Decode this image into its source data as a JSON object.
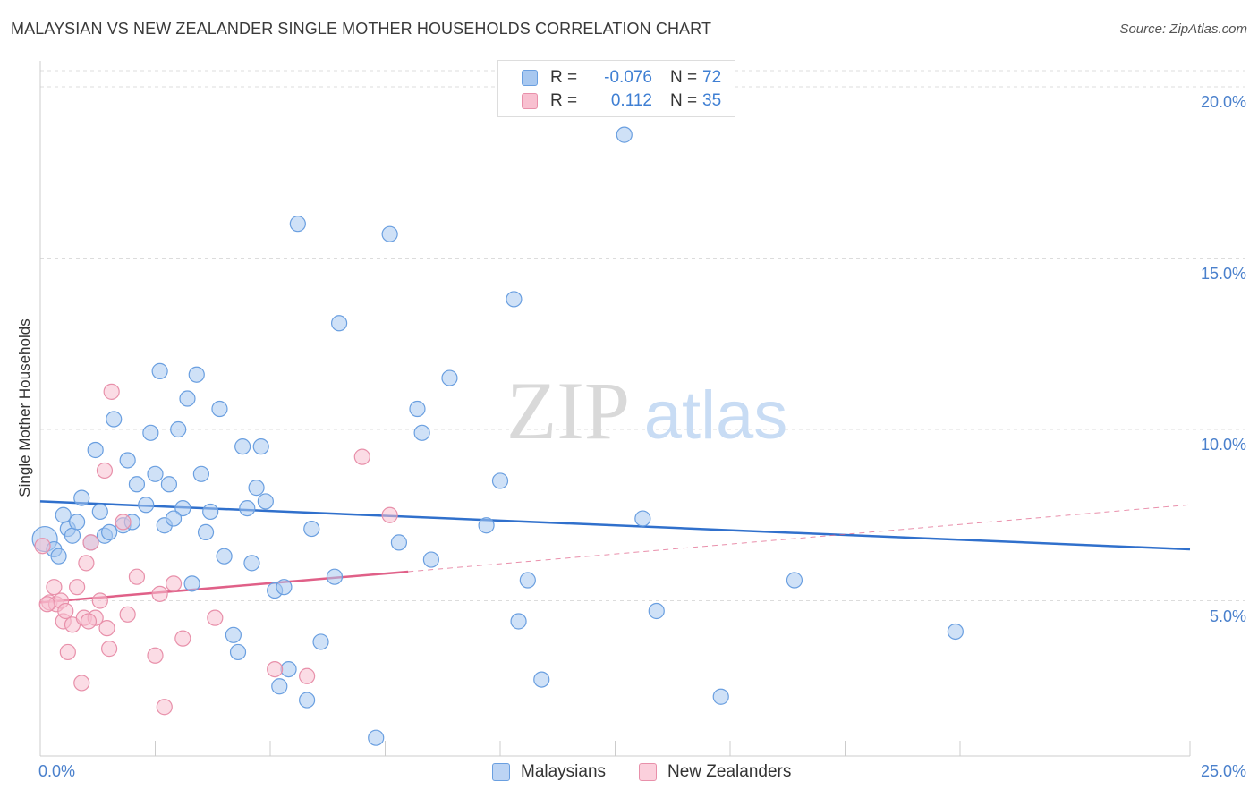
{
  "header": {
    "title": "MALAYSIAN VS NEW ZEALANDER SINGLE MOTHER HOUSEHOLDS CORRELATION CHART",
    "source": "Source: ZipAtlas.com"
  },
  "watermark": {
    "zip": "ZIP",
    "atlas": "atlas"
  },
  "stats_legend": [
    {
      "r_label": "R =",
      "r_value": "-0.076",
      "n_label": "N =",
      "n_value": "72",
      "color": "#a8c8f0",
      "border": "#6a9fe0"
    },
    {
      "r_label": "R =",
      "r_value": "0.112",
      "n_label": "N =",
      "n_value": "35",
      "color": "#f8c0d0",
      "border": "#e890aa"
    }
  ],
  "chart_data": {
    "type": "scatter",
    "title": "MALAYSIAN VS NEW ZEALANDER SINGLE MOTHER HOUSEHOLDS CORRELATION CHART",
    "xlabel": "",
    "ylabel": "Single Mother Households",
    "xlim": [
      0,
      25
    ],
    "ylim": [
      0,
      20
    ],
    "x_tick_labels": [
      "0.0%",
      "25.0%"
    ],
    "y_ticks": [
      5,
      10,
      15,
      20
    ],
    "y_tick_labels": [
      "5.0%",
      "10.0%",
      "15.0%",
      "20.0%"
    ],
    "grid": "horizontal-dashed",
    "legend_position": "bottom-center",
    "series": [
      {
        "name": "Malaysians",
        "color": "#6a9fe0",
        "fill": "#a8c8f0",
        "trend": {
          "x": [
            0,
            25
          ],
          "y": [
            7.9,
            6.5
          ],
          "color": "#3070cc"
        },
        "points": [
          [
            0.1,
            6.8
          ],
          [
            0.3,
            6.5
          ],
          [
            0.4,
            6.3
          ],
          [
            0.6,
            7.1
          ],
          [
            0.7,
            6.9
          ],
          [
            0.8,
            7.3
          ],
          [
            0.9,
            8.0
          ],
          [
            1.1,
            6.7
          ],
          [
            1.2,
            9.4
          ],
          [
            1.4,
            6.9
          ],
          [
            1.5,
            7.0
          ],
          [
            1.6,
            10.3
          ],
          [
            1.8,
            7.2
          ],
          [
            1.9,
            9.1
          ],
          [
            2.0,
            7.3
          ],
          [
            2.1,
            8.4
          ],
          [
            2.3,
            7.8
          ],
          [
            2.4,
            9.9
          ],
          [
            2.5,
            8.7
          ],
          [
            2.6,
            11.7
          ],
          [
            2.7,
            7.2
          ],
          [
            2.8,
            8.4
          ],
          [
            3.0,
            10.0
          ],
          [
            3.1,
            7.7
          ],
          [
            3.2,
            10.9
          ],
          [
            3.4,
            11.6
          ],
          [
            3.5,
            8.7
          ],
          [
            3.6,
            7.0
          ],
          [
            3.7,
            7.6
          ],
          [
            3.9,
            10.6
          ],
          [
            4.0,
            6.3
          ],
          [
            4.2,
            4.0
          ],
          [
            4.4,
            9.5
          ],
          [
            4.5,
            7.7
          ],
          [
            4.7,
            8.3
          ],
          [
            4.8,
            9.5
          ],
          [
            4.9,
            7.9
          ],
          [
            5.1,
            5.3
          ],
          [
            5.2,
            2.5
          ],
          [
            5.3,
            5.4
          ],
          [
            5.4,
            3.0
          ],
          [
            5.6,
            16.0
          ],
          [
            5.8,
            2.1
          ],
          [
            5.9,
            7.1
          ],
          [
            6.1,
            3.8
          ],
          [
            6.4,
            5.7
          ],
          [
            6.5,
            13.1
          ],
          [
            7.3,
            1.0
          ],
          [
            7.6,
            15.7
          ],
          [
            7.8,
            6.7
          ],
          [
            8.2,
            10.6
          ],
          [
            8.3,
            9.9
          ],
          [
            8.5,
            6.2
          ],
          [
            8.9,
            11.5
          ],
          [
            9.7,
            7.2
          ],
          [
            10.0,
            8.5
          ],
          [
            10.3,
            13.8
          ],
          [
            10.4,
            4.4
          ],
          [
            10.6,
            5.6
          ],
          [
            10.9,
            2.7
          ],
          [
            12.7,
            18.6
          ],
          [
            13.1,
            7.4
          ],
          [
            13.4,
            4.7
          ],
          [
            14.8,
            2.2
          ],
          [
            16.4,
            5.6
          ],
          [
            19.9,
            4.1
          ],
          [
            4.3,
            3.5
          ],
          [
            2.9,
            7.4
          ],
          [
            1.3,
            7.6
          ],
          [
            0.5,
            7.5
          ],
          [
            4.6,
            6.1
          ],
          [
            3.3,
            5.5
          ]
        ]
      },
      {
        "name": "New Zealanders",
        "color": "#e890aa",
        "fill": "#f8c0d0",
        "trend": {
          "x": [
            0,
            8.0
          ],
          "y": [
            4.95,
            5.85
          ],
          "color": "#e06088",
          "dash_extension": {
            "x": [
              8.0,
              25
            ],
            "y": [
              5.85,
              7.8
            ]
          }
        },
        "points": [
          [
            0.05,
            6.6
          ],
          [
            0.2,
            4.95
          ],
          [
            0.3,
            5.4
          ],
          [
            0.35,
            4.9
          ],
          [
            0.45,
            5.0
          ],
          [
            0.5,
            4.4
          ],
          [
            0.55,
            4.7
          ],
          [
            0.6,
            3.5
          ],
          [
            0.7,
            4.3
          ],
          [
            0.8,
            5.4
          ],
          [
            0.9,
            2.6
          ],
          [
            0.95,
            4.5
          ],
          [
            1.0,
            6.1
          ],
          [
            1.1,
            6.7
          ],
          [
            1.2,
            4.5
          ],
          [
            1.3,
            5.0
          ],
          [
            1.4,
            8.8
          ],
          [
            1.45,
            4.2
          ],
          [
            1.5,
            3.6
          ],
          [
            1.55,
            11.1
          ],
          [
            1.8,
            7.3
          ],
          [
            1.9,
            4.6
          ],
          [
            2.1,
            5.7
          ],
          [
            2.5,
            3.4
          ],
          [
            2.6,
            5.2
          ],
          [
            2.7,
            1.9
          ],
          [
            2.9,
            5.5
          ],
          [
            3.1,
            3.9
          ],
          [
            3.8,
            4.5
          ],
          [
            5.1,
            3.0
          ],
          [
            5.8,
            2.8
          ],
          [
            7.0,
            9.2
          ],
          [
            7.6,
            7.5
          ],
          [
            0.15,
            4.9
          ],
          [
            1.05,
            4.4
          ]
        ]
      }
    ]
  }
}
